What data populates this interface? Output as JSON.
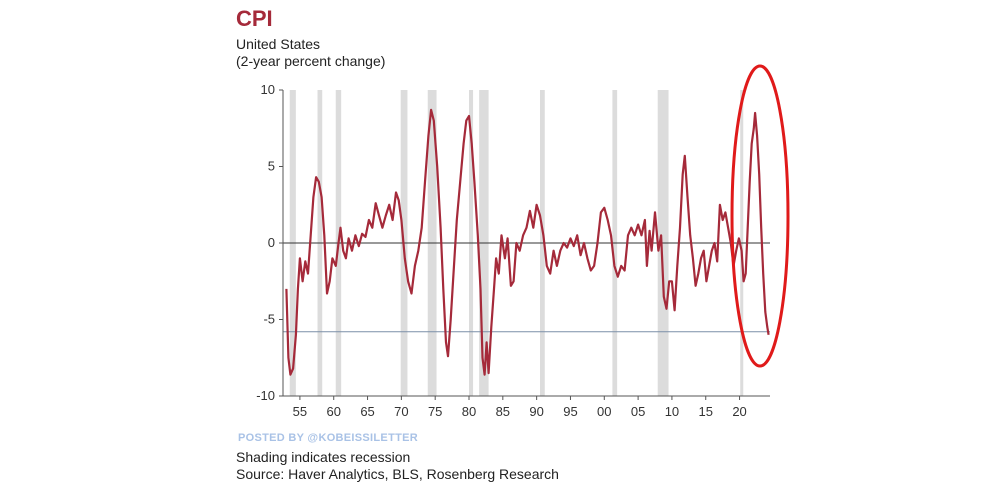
{
  "chart_data": {
    "type": "line",
    "title": "CPI",
    "subtitle_lines": [
      "United States",
      "(2-year percent change)"
    ],
    "xlabel": "",
    "ylabel": "",
    "xlim": [
      1952.5,
      2024.5
    ],
    "ylim": [
      -10,
      10
    ],
    "y_ticks": [
      10,
      5,
      0,
      -5,
      -10
    ],
    "x_ticks": [
      {
        "year": 1955,
        "label": "55"
      },
      {
        "year": 1960,
        "label": "60"
      },
      {
        "year": 1965,
        "label": "65"
      },
      {
        "year": 1970,
        "label": "70"
      },
      {
        "year": 1975,
        "label": "75"
      },
      {
        "year": 1980,
        "label": "80"
      },
      {
        "year": 1985,
        "label": "85"
      },
      {
        "year": 1990,
        "label": "90"
      },
      {
        "year": 1995,
        "label": "95"
      },
      {
        "year": 2000,
        "label": "00"
      },
      {
        "year": 2005,
        "label": "05"
      },
      {
        "year": 2010,
        "label": "10"
      },
      {
        "year": 2015,
        "label": "15"
      },
      {
        "year": 2020,
        "label": "20"
      }
    ],
    "reference_lines": [
      0,
      -5.8
    ],
    "recessions": [
      [
        1953.5,
        1954.4
      ],
      [
        1957.6,
        1958.3
      ],
      [
        1960.3,
        1961.1
      ],
      [
        1969.9,
        1970.9
      ],
      [
        1973.9,
        1975.2
      ],
      [
        1980.0,
        1980.6
      ],
      [
        1981.5,
        1982.9
      ],
      [
        1990.5,
        1991.2
      ],
      [
        2001.2,
        2001.9
      ],
      [
        2007.9,
        2009.5
      ],
      [
        2020.1,
        2020.4
      ]
    ],
    "series": [
      {
        "color": "#a52a3a",
        "points": [
          [
            1953.0,
            -3.0
          ],
          [
            1953.3,
            -7.5
          ],
          [
            1953.6,
            -8.6
          ],
          [
            1954.0,
            -8.2
          ],
          [
            1954.4,
            -6.0
          ],
          [
            1954.7,
            -3.0
          ],
          [
            1955.0,
            -1.0
          ],
          [
            1955.4,
            -2.5
          ],
          [
            1955.8,
            -1.2
          ],
          [
            1956.2,
            -2.0
          ],
          [
            1956.6,
            0.5
          ],
          [
            1957.0,
            3.0
          ],
          [
            1957.4,
            4.3
          ],
          [
            1957.8,
            4.0
          ],
          [
            1958.2,
            3.0
          ],
          [
            1958.6,
            0.5
          ],
          [
            1959.0,
            -3.3
          ],
          [
            1959.4,
            -2.5
          ],
          [
            1959.8,
            -1.0
          ],
          [
            1960.3,
            -1.5
          ],
          [
            1960.7,
            0.0
          ],
          [
            1961.0,
            1.0
          ],
          [
            1961.4,
            -0.5
          ],
          [
            1961.8,
            -1.0
          ],
          [
            1962.2,
            0.3
          ],
          [
            1962.7,
            -0.5
          ],
          [
            1963.2,
            0.5
          ],
          [
            1963.7,
            -0.2
          ],
          [
            1964.2,
            0.6
          ],
          [
            1964.7,
            0.4
          ],
          [
            1965.2,
            1.5
          ],
          [
            1965.7,
            1.0
          ],
          [
            1966.2,
            2.6
          ],
          [
            1966.7,
            1.8
          ],
          [
            1967.2,
            1.0
          ],
          [
            1967.7,
            1.8
          ],
          [
            1968.2,
            2.5
          ],
          [
            1968.7,
            1.5
          ],
          [
            1969.2,
            3.3
          ],
          [
            1969.6,
            2.8
          ],
          [
            1970.0,
            1.5
          ],
          [
            1970.5,
            -1.0
          ],
          [
            1971.0,
            -2.5
          ],
          [
            1971.5,
            -3.3
          ],
          [
            1972.0,
            -1.5
          ],
          [
            1972.5,
            -0.5
          ],
          [
            1973.0,
            1.0
          ],
          [
            1973.5,
            4.0
          ],
          [
            1974.0,
            7.0
          ],
          [
            1974.4,
            8.7
          ],
          [
            1974.8,
            8.0
          ],
          [
            1975.3,
            5.0
          ],
          [
            1975.8,
            1.0
          ],
          [
            1976.2,
            -3.0
          ],
          [
            1976.6,
            -6.5
          ],
          [
            1976.9,
            -7.4
          ],
          [
            1977.3,
            -5.0
          ],
          [
            1977.7,
            -2.0
          ],
          [
            1978.2,
            1.5
          ],
          [
            1978.7,
            4.0
          ],
          [
            1979.2,
            6.5
          ],
          [
            1979.6,
            8.0
          ],
          [
            1980.0,
            8.3
          ],
          [
            1980.4,
            6.5
          ],
          [
            1980.8,
            4.0
          ],
          [
            1981.3,
            0.5
          ],
          [
            1981.7,
            -3.0
          ],
          [
            1982.0,
            -7.5
          ],
          [
            1982.3,
            -8.6
          ],
          [
            1982.6,
            -6.5
          ],
          [
            1982.9,
            -8.5
          ],
          [
            1983.3,
            -5.5
          ],
          [
            1983.7,
            -3.0
          ],
          [
            1984.0,
            -1.0
          ],
          [
            1984.4,
            -2.0
          ],
          [
            1984.8,
            0.5
          ],
          [
            1985.3,
            -1.0
          ],
          [
            1985.7,
            0.3
          ],
          [
            1986.2,
            -2.8
          ],
          [
            1986.6,
            -2.5
          ],
          [
            1987.0,
            0.0
          ],
          [
            1987.5,
            -0.5
          ],
          [
            1988.0,
            0.5
          ],
          [
            1988.5,
            1.0
          ],
          [
            1989.0,
            2.1
          ],
          [
            1989.5,
            1.0
          ],
          [
            1990.0,
            2.5
          ],
          [
            1990.5,
            1.8
          ],
          [
            1991.0,
            0.5
          ],
          [
            1991.5,
            -1.5
          ],
          [
            1992.0,
            -2.0
          ],
          [
            1992.5,
            -0.5
          ],
          [
            1993.0,
            -1.5
          ],
          [
            1993.5,
            -0.5
          ],
          [
            1994.0,
            0.0
          ],
          [
            1994.5,
            -0.3
          ],
          [
            1995.0,
            0.3
          ],
          [
            1995.5,
            -0.2
          ],
          [
            1996.0,
            0.5
          ],
          [
            1996.5,
            -0.8
          ],
          [
            1997.0,
            0.0
          ],
          [
            1997.5,
            -1.0
          ],
          [
            1998.0,
            -1.8
          ],
          [
            1998.5,
            -1.5
          ],
          [
            1999.0,
            0.0
          ],
          [
            1999.5,
            2.0
          ],
          [
            2000.0,
            2.3
          ],
          [
            2000.5,
            1.5
          ],
          [
            2001.0,
            0.5
          ],
          [
            2001.5,
            -1.5
          ],
          [
            2002.0,
            -2.2
          ],
          [
            2002.5,
            -1.5
          ],
          [
            2003.0,
            -1.8
          ],
          [
            2003.5,
            0.5
          ],
          [
            2004.0,
            1.0
          ],
          [
            2004.5,
            0.5
          ],
          [
            2005.0,
            1.2
          ],
          [
            2005.5,
            0.5
          ],
          [
            2006.0,
            1.5
          ],
          [
            2006.3,
            -1.5
          ],
          [
            2006.7,
            0.8
          ],
          [
            2007.0,
            -0.5
          ],
          [
            2007.5,
            2.0
          ],
          [
            2008.0,
            -0.5
          ],
          [
            2008.4,
            0.5
          ],
          [
            2008.8,
            -3.5
          ],
          [
            2009.2,
            -4.3
          ],
          [
            2009.6,
            -2.5
          ],
          [
            2010.0,
            -2.5
          ],
          [
            2010.4,
            -4.4
          ],
          [
            2010.8,
            -1.5
          ],
          [
            2011.2,
            1.0
          ],
          [
            2011.6,
            4.5
          ],
          [
            2011.9,
            5.7
          ],
          [
            2012.3,
            3.0
          ],
          [
            2012.7,
            0.5
          ],
          [
            2013.1,
            -1.0
          ],
          [
            2013.5,
            -2.8
          ],
          [
            2013.9,
            -2.0
          ],
          [
            2014.3,
            -1.0
          ],
          [
            2014.7,
            -0.5
          ],
          [
            2015.1,
            -2.5
          ],
          [
            2015.5,
            -1.5
          ],
          [
            2015.9,
            -0.5
          ],
          [
            2016.3,
            0.0
          ],
          [
            2016.7,
            -1.2
          ],
          [
            2017.1,
            2.5
          ],
          [
            2017.5,
            1.5
          ],
          [
            2017.9,
            2.0
          ],
          [
            2018.3,
            1.0
          ],
          [
            2018.7,
            0.0
          ],
          [
            2019.1,
            -1.5
          ],
          [
            2019.5,
            -0.5
          ],
          [
            2019.9,
            0.3
          ],
          [
            2020.3,
            -0.5
          ],
          [
            2020.6,
            -2.5
          ],
          [
            2020.9,
            -2.0
          ],
          [
            2021.2,
            1.0
          ],
          [
            2021.5,
            4.0
          ],
          [
            2021.8,
            6.5
          ],
          [
            2022.1,
            7.5
          ],
          [
            2022.3,
            8.5
          ],
          [
            2022.6,
            7.0
          ],
          [
            2022.9,
            4.5
          ],
          [
            2023.2,
            1.0
          ],
          [
            2023.5,
            -2.0
          ],
          [
            2023.8,
            -4.5
          ],
          [
            2024.1,
            -5.5
          ],
          [
            2024.3,
            -6.0
          ]
        ]
      }
    ]
  },
  "footer": {
    "watermark": "POSTED BY @KOBEISSILETTER",
    "line1": "Shading indicates recession",
    "line2": "Source: Haver Analytics, BLS, Rosenberg Research"
  }
}
